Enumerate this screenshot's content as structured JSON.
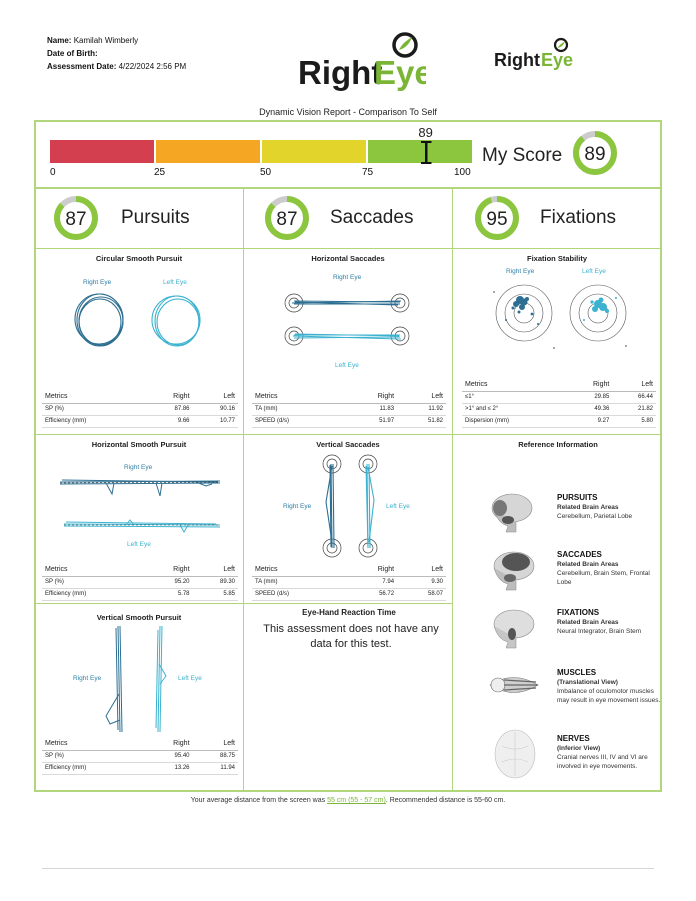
{
  "patient": {
    "name_label": "Name:",
    "name": "Kamilah Wimberly",
    "dob_label": "Date of Birth:",
    "dob": "",
    "assessment_label": "Assessment Date:",
    "assessment_date": "4/22/2024 2:56 PM"
  },
  "brand": {
    "logo_text_right": "Right",
    "logo_text_eye": "Eye",
    "dark": "#1b1b1b",
    "green": "#7ab536"
  },
  "report_title": "Dynamic Vision Report - Comparison To Self",
  "score": {
    "value": "89",
    "label": "My Score",
    "fraction": 0.89,
    "ticks": [
      "0",
      "25",
      "50",
      "75",
      "100"
    ],
    "segment_colors": [
      "#d43f50",
      "#f5a623",
      "#e2d42a",
      "#8cc63f"
    ]
  },
  "sections": {
    "pursuits": {
      "title": "Pursuits",
      "score": "87",
      "fraction": 0.87
    },
    "saccades": {
      "title": "Saccades",
      "score": "87",
      "fraction": 0.87
    },
    "fixations": {
      "title": "Fixations",
      "score": "95",
      "fraction": 0.95
    }
  },
  "panels": {
    "circular": {
      "title": "Circular Smooth Pursuit",
      "right_eye": "Right Eye",
      "left_eye": "Left Eye",
      "metrics_header": [
        "Metrics",
        "Right",
        "Left"
      ],
      "rows": [
        [
          "SP (%)",
          "87.86",
          "90.16"
        ],
        [
          "Efficiency (mm)",
          "9.66",
          "10.77"
        ]
      ]
    },
    "hsaccades": {
      "title": "Horizontal Saccades",
      "right_eye": "Right Eye",
      "left_eye": "Left Eye",
      "metrics_header": [
        "Metrics",
        "Right",
        "Left"
      ],
      "rows": [
        [
          "TA (mm)",
          "11.83",
          "11.92"
        ],
        [
          "SPEED (d/s)",
          "51.97",
          "51.82"
        ]
      ]
    },
    "fixation": {
      "title": "Fixation Stability",
      "right_eye": "Right Eye",
      "left_eye": "Left Eye",
      "metrics_header": [
        "Metrics",
        "Right",
        "Left"
      ],
      "rows": [
        [
          "≤1°",
          "29.85",
          "66.44"
        ],
        [
          ">1° and ≤ 2°",
          "49.36",
          "21.82"
        ],
        [
          "Dispersion (mm)",
          "9.27",
          "5.80"
        ]
      ]
    },
    "hpursuit": {
      "title": "Horizontal Smooth Pursuit",
      "right_eye": "Right Eye",
      "left_eye": "Left Eye",
      "metrics_header": [
        "Metrics",
        "Right",
        "Left"
      ],
      "rows": [
        [
          "SP (%)",
          "95.20",
          "89.30"
        ],
        [
          "Efficiency (mm)",
          "5.78",
          "5.85"
        ]
      ]
    },
    "vsaccades": {
      "title": "Vertical Saccades",
      "right_eye": "Right Eye",
      "left_eye": "Left Eye",
      "metrics_header": [
        "Metrics",
        "Right",
        "Left"
      ],
      "rows": [
        [
          "TA (mm)",
          "7.94",
          "9.30"
        ],
        [
          "SPEED (d/s)",
          "56.72",
          "58.07"
        ]
      ]
    },
    "vpursuit": {
      "title": "Vertical Smooth Pursuit",
      "right_eye": "Right Eye",
      "left_eye": "Left Eye",
      "metrics_header": [
        "Metrics",
        "Right",
        "Left"
      ],
      "rows": [
        [
          "SP (%)",
          "95.40",
          "88.75"
        ],
        [
          "Efficiency (mm)",
          "13.26",
          "11.94"
        ]
      ]
    },
    "eyehand": {
      "title": "Eye-Hand Reaction Time",
      "message": "This assessment does not have any data for this test."
    }
  },
  "reference": {
    "title": "Reference Information",
    "items": [
      {
        "heading": "PURSUITS",
        "sub": "Related Brain Areas",
        "text": "Cerebellum, Parietal Lobe"
      },
      {
        "heading": "SACCADES",
        "sub": "Related Brain Areas",
        "text": "Cerebellum, Brain Stem, Frontal Lobe"
      },
      {
        "heading": "FIXATIONS",
        "sub": "Related Brain Areas",
        "text": "Neural Integrator, Brain Stem"
      },
      {
        "heading": "MUSCLES",
        "sub": "(Translational View)",
        "text": "Imbalance of oculomotor muscles may result in eye movement issues."
      },
      {
        "heading": "NERVES",
        "sub": "(Inferior View)",
        "text": "Cranial nerves III, IV and VI are involved in eye movements."
      }
    ]
  },
  "footer": {
    "prefix": "Your average distance from the screen was ",
    "distance": "55 cm (55 - 57 cm)",
    "suffix": ". Recommended distance is 55-60 cm."
  },
  "colors": {
    "frame": "#b2d67c",
    "right_eye": "#2d6f92",
    "left_eye": "#3bb2cf",
    "ring": "#8cc63f",
    "ring_bg": "#cccccc"
  }
}
